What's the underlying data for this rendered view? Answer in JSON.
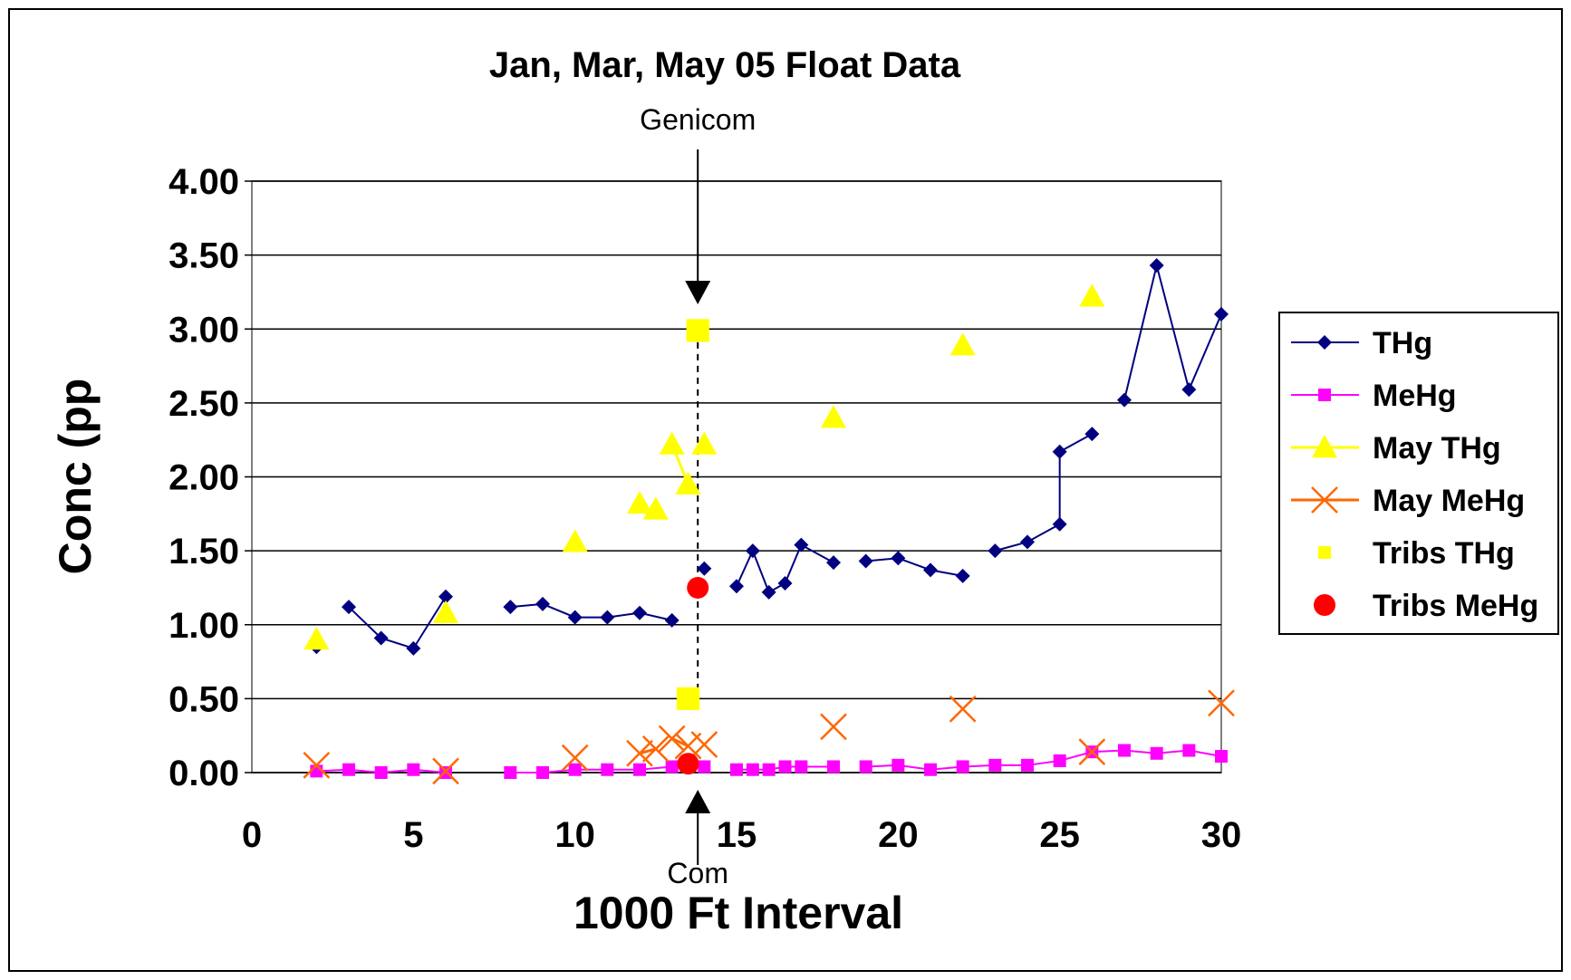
{
  "chart_data": {
    "type": "scatter",
    "title": "Jan, Mar, May 05 Float Data",
    "xlabel": "1000 Ft Interval",
    "ylabel": "Conc (pp",
    "xlim": [
      0,
      30
    ],
    "ylim": [
      0,
      4
    ],
    "xticks": [
      "0",
      "5",
      "10",
      "15",
      "20",
      "25",
      "30"
    ],
    "yticks": [
      "0.00",
      "0.50",
      "1.00",
      "1.50",
      "2.00",
      "2.50",
      "3.00",
      "3.50",
      "4.00"
    ],
    "grid": "horizontal",
    "legend_position": "right",
    "annotations": [
      {
        "text": "Genicom",
        "x": 13.8,
        "y": 3.0,
        "arrow": "down"
      },
      {
        "text": "Com",
        "x": 13.8,
        "y": 0.05,
        "arrow": "up"
      }
    ],
    "series": [
      {
        "name": "THg",
        "color": "#000080",
        "marker": "diamond",
        "line": true,
        "segments": [
          [
            [
              2,
              0.85
            ]
          ],
          [
            [
              3,
              1.12
            ],
            [
              4,
              0.91
            ],
            [
              5,
              0.84
            ],
            [
              6,
              1.19
            ]
          ],
          [
            [
              8,
              1.12
            ],
            [
              9,
              1.14
            ],
            [
              10,
              1.05
            ],
            [
              11,
              1.05
            ],
            [
              12,
              1.08
            ],
            [
              13,
              1.03
            ]
          ],
          [
            [
              14,
              1.38
            ]
          ],
          [
            [
              15,
              1.26
            ],
            [
              15.5,
              1.5
            ],
            [
              16,
              1.22
            ],
            [
              16.5,
              1.28
            ],
            [
              17,
              1.54
            ],
            [
              18,
              1.42
            ]
          ],
          [
            [
              19,
              1.43
            ],
            [
              20,
              1.45
            ],
            [
              21,
              1.37
            ],
            [
              22,
              1.33
            ]
          ],
          [
            [
              23,
              1.5
            ],
            [
              24,
              1.56
            ],
            [
              25,
              1.68
            ],
            [
              25,
              2.17
            ],
            [
              26,
              2.29
            ]
          ],
          [
            [
              27,
              2.52
            ],
            [
              28,
              3.43
            ],
            [
              29,
              2.59
            ],
            [
              30,
              3.1
            ]
          ]
        ]
      },
      {
        "name": "MeHg",
        "color": "#FF00FF",
        "marker": "square",
        "line": true,
        "segments": [
          [
            [
              2,
              0.01
            ],
            [
              3,
              0.02
            ],
            [
              4,
              0.0
            ],
            [
              5,
              0.02
            ],
            [
              6,
              0.0
            ]
          ],
          [
            [
              8,
              0.0
            ],
            [
              9,
              0.0
            ],
            [
              10,
              0.02
            ],
            [
              11,
              0.02
            ],
            [
              12,
              0.02
            ],
            [
              13,
              0.04
            ],
            [
              14,
              0.04
            ]
          ],
          [
            [
              15,
              0.02
            ],
            [
              15.5,
              0.02
            ],
            [
              16,
              0.02
            ],
            [
              16.5,
              0.04
            ],
            [
              17,
              0.04
            ],
            [
              18,
              0.04
            ]
          ],
          [
            [
              19,
              0.04
            ],
            [
              20,
              0.05
            ],
            [
              21,
              0.02
            ],
            [
              22,
              0.04
            ],
            [
              23,
              0.05
            ],
            [
              24,
              0.05
            ],
            [
              25,
              0.08
            ],
            [
              26,
              0.14
            ],
            [
              27,
              0.15
            ],
            [
              28,
              0.13
            ],
            [
              29,
              0.15
            ],
            [
              30,
              0.11
            ]
          ]
        ]
      },
      {
        "name": "May THg",
        "color": "#FFFF00",
        "marker": "triangle",
        "line": true,
        "segments": [
          [
            [
              2,
              0.9
            ]
          ],
          [
            [
              6,
              1.08
            ]
          ],
          [
            [
              10,
              1.56
            ]
          ],
          [
            [
              12,
              1.82
            ]
          ],
          [
            [
              12.5,
              1.78
            ]
          ],
          [
            [
              13,
              2.22
            ],
            [
              13.5,
              1.95
            ]
          ],
          [
            [
              14,
              2.22
            ]
          ],
          [
            [
              18,
              2.4
            ]
          ],
          [
            [
              22,
              2.89
            ]
          ],
          [
            [
              26,
              3.22
            ]
          ]
        ]
      },
      {
        "name": "May MeHg",
        "color": "#FF6600",
        "marker": "x",
        "line": true,
        "segments": [
          [
            [
              2,
              0.05
            ]
          ],
          [
            [
              6,
              0.01
            ]
          ],
          [
            [
              10,
              0.1
            ]
          ],
          [
            [
              12,
              0.13
            ],
            [
              12.5,
              0.16
            ]
          ],
          [
            [
              13,
              0.23
            ],
            [
              13.5,
              0.18
            ]
          ],
          [
            [
              14,
              0.19
            ]
          ],
          [
            [
              18,
              0.31
            ]
          ],
          [
            [
              22,
              0.43
            ]
          ],
          [
            [
              26,
              0.14
            ]
          ],
          [
            [
              30,
              0.47
            ]
          ]
        ]
      },
      {
        "name": "Tribs THg",
        "color": "#FFFF00",
        "marker": "square",
        "line": false,
        "points": [
          [
            13.8,
            2.99
          ],
          [
            13.5,
            0.5
          ]
        ]
      },
      {
        "name": "Tribs MeHg",
        "color": "#FF0000",
        "marker": "circle",
        "line": false,
        "points": [
          [
            13.8,
            1.25
          ],
          [
            13.5,
            0.06
          ]
        ]
      }
    ]
  }
}
